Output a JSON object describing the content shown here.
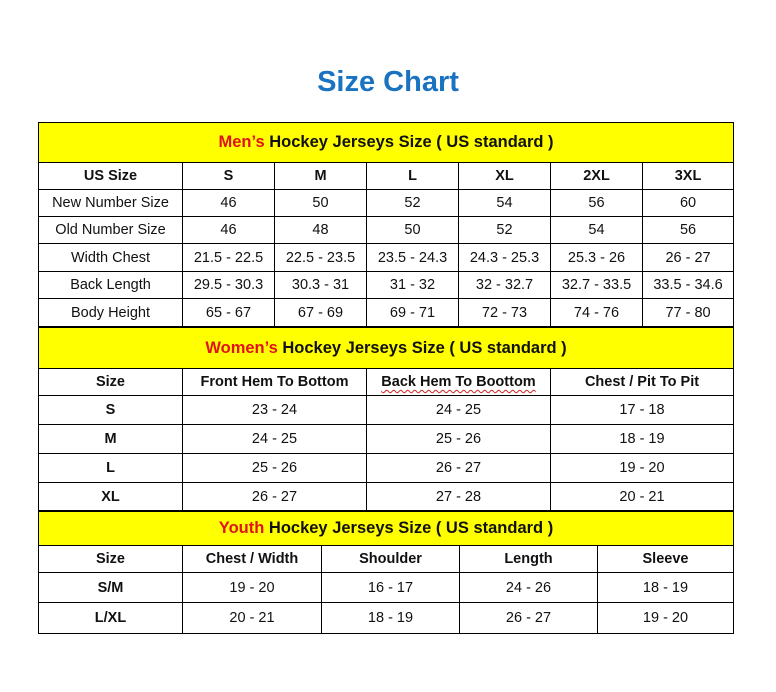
{
  "title": "Size Chart",
  "colors": {
    "title": "#1a73c0",
    "band": "#ffff00",
    "accent_red": "#e0121a"
  },
  "men": {
    "prefix": "Men’s",
    "heading": "Hockey Jerseys Size ( US standard )",
    "columns": [
      "US Size",
      "S",
      "M",
      "L",
      "XL",
      "2XL",
      "3XL"
    ],
    "rows": [
      [
        "New Number Size",
        "46",
        "50",
        "52",
        "54",
        "56",
        "60"
      ],
      [
        "Old Number Size",
        "46",
        "48",
        "50",
        "52",
        "54",
        "56"
      ],
      [
        "Width Chest",
        "21.5 - 22.5",
        "22.5 - 23.5",
        "23.5 - 24.3",
        "24.3 - 25.3",
        "25.3 - 26",
        "26 - 27"
      ],
      [
        "Back Length",
        "29.5 - 30.3",
        "30.3 - 31",
        "31 - 32",
        "32 - 32.7",
        "32.7 - 33.5",
        "33.5 - 34.6"
      ],
      [
        "Body Height",
        "65 - 67",
        "67 - 69",
        "69 - 71",
        "72 - 73",
        "74 - 76",
        "77 - 80"
      ]
    ]
  },
  "women": {
    "prefix": "Women’s",
    "heading": "Hockey Jerseys Size ( US standard )",
    "columns": [
      "Size",
      "Front Hem To Bottom",
      "Back Hem To Boottom",
      "Chest / Pit To Pit"
    ],
    "rows": [
      [
        "S",
        "23 - 24",
        "24 - 25",
        "17 - 18"
      ],
      [
        "M",
        "24 - 25",
        "25 - 26",
        "18 - 19"
      ],
      [
        "L",
        "25 - 26",
        "26 - 27",
        "19 - 20"
      ],
      [
        "XL",
        "26 - 27",
        "27 - 28",
        "20 - 21"
      ]
    ]
  },
  "youth": {
    "prefix": "Youth",
    "heading": "Hockey Jerseys Size ( US standard )",
    "columns": [
      "Size",
      "Chest / Width",
      "Shoulder",
      "Length",
      "Sleeve"
    ],
    "rows": [
      [
        "S/M",
        "19 - 20",
        "16 - 17",
        "24 - 26",
        "18 - 19"
      ],
      [
        "L/XL",
        "20 - 21",
        "18 - 19",
        "26 - 27",
        "19 - 20"
      ]
    ]
  }
}
